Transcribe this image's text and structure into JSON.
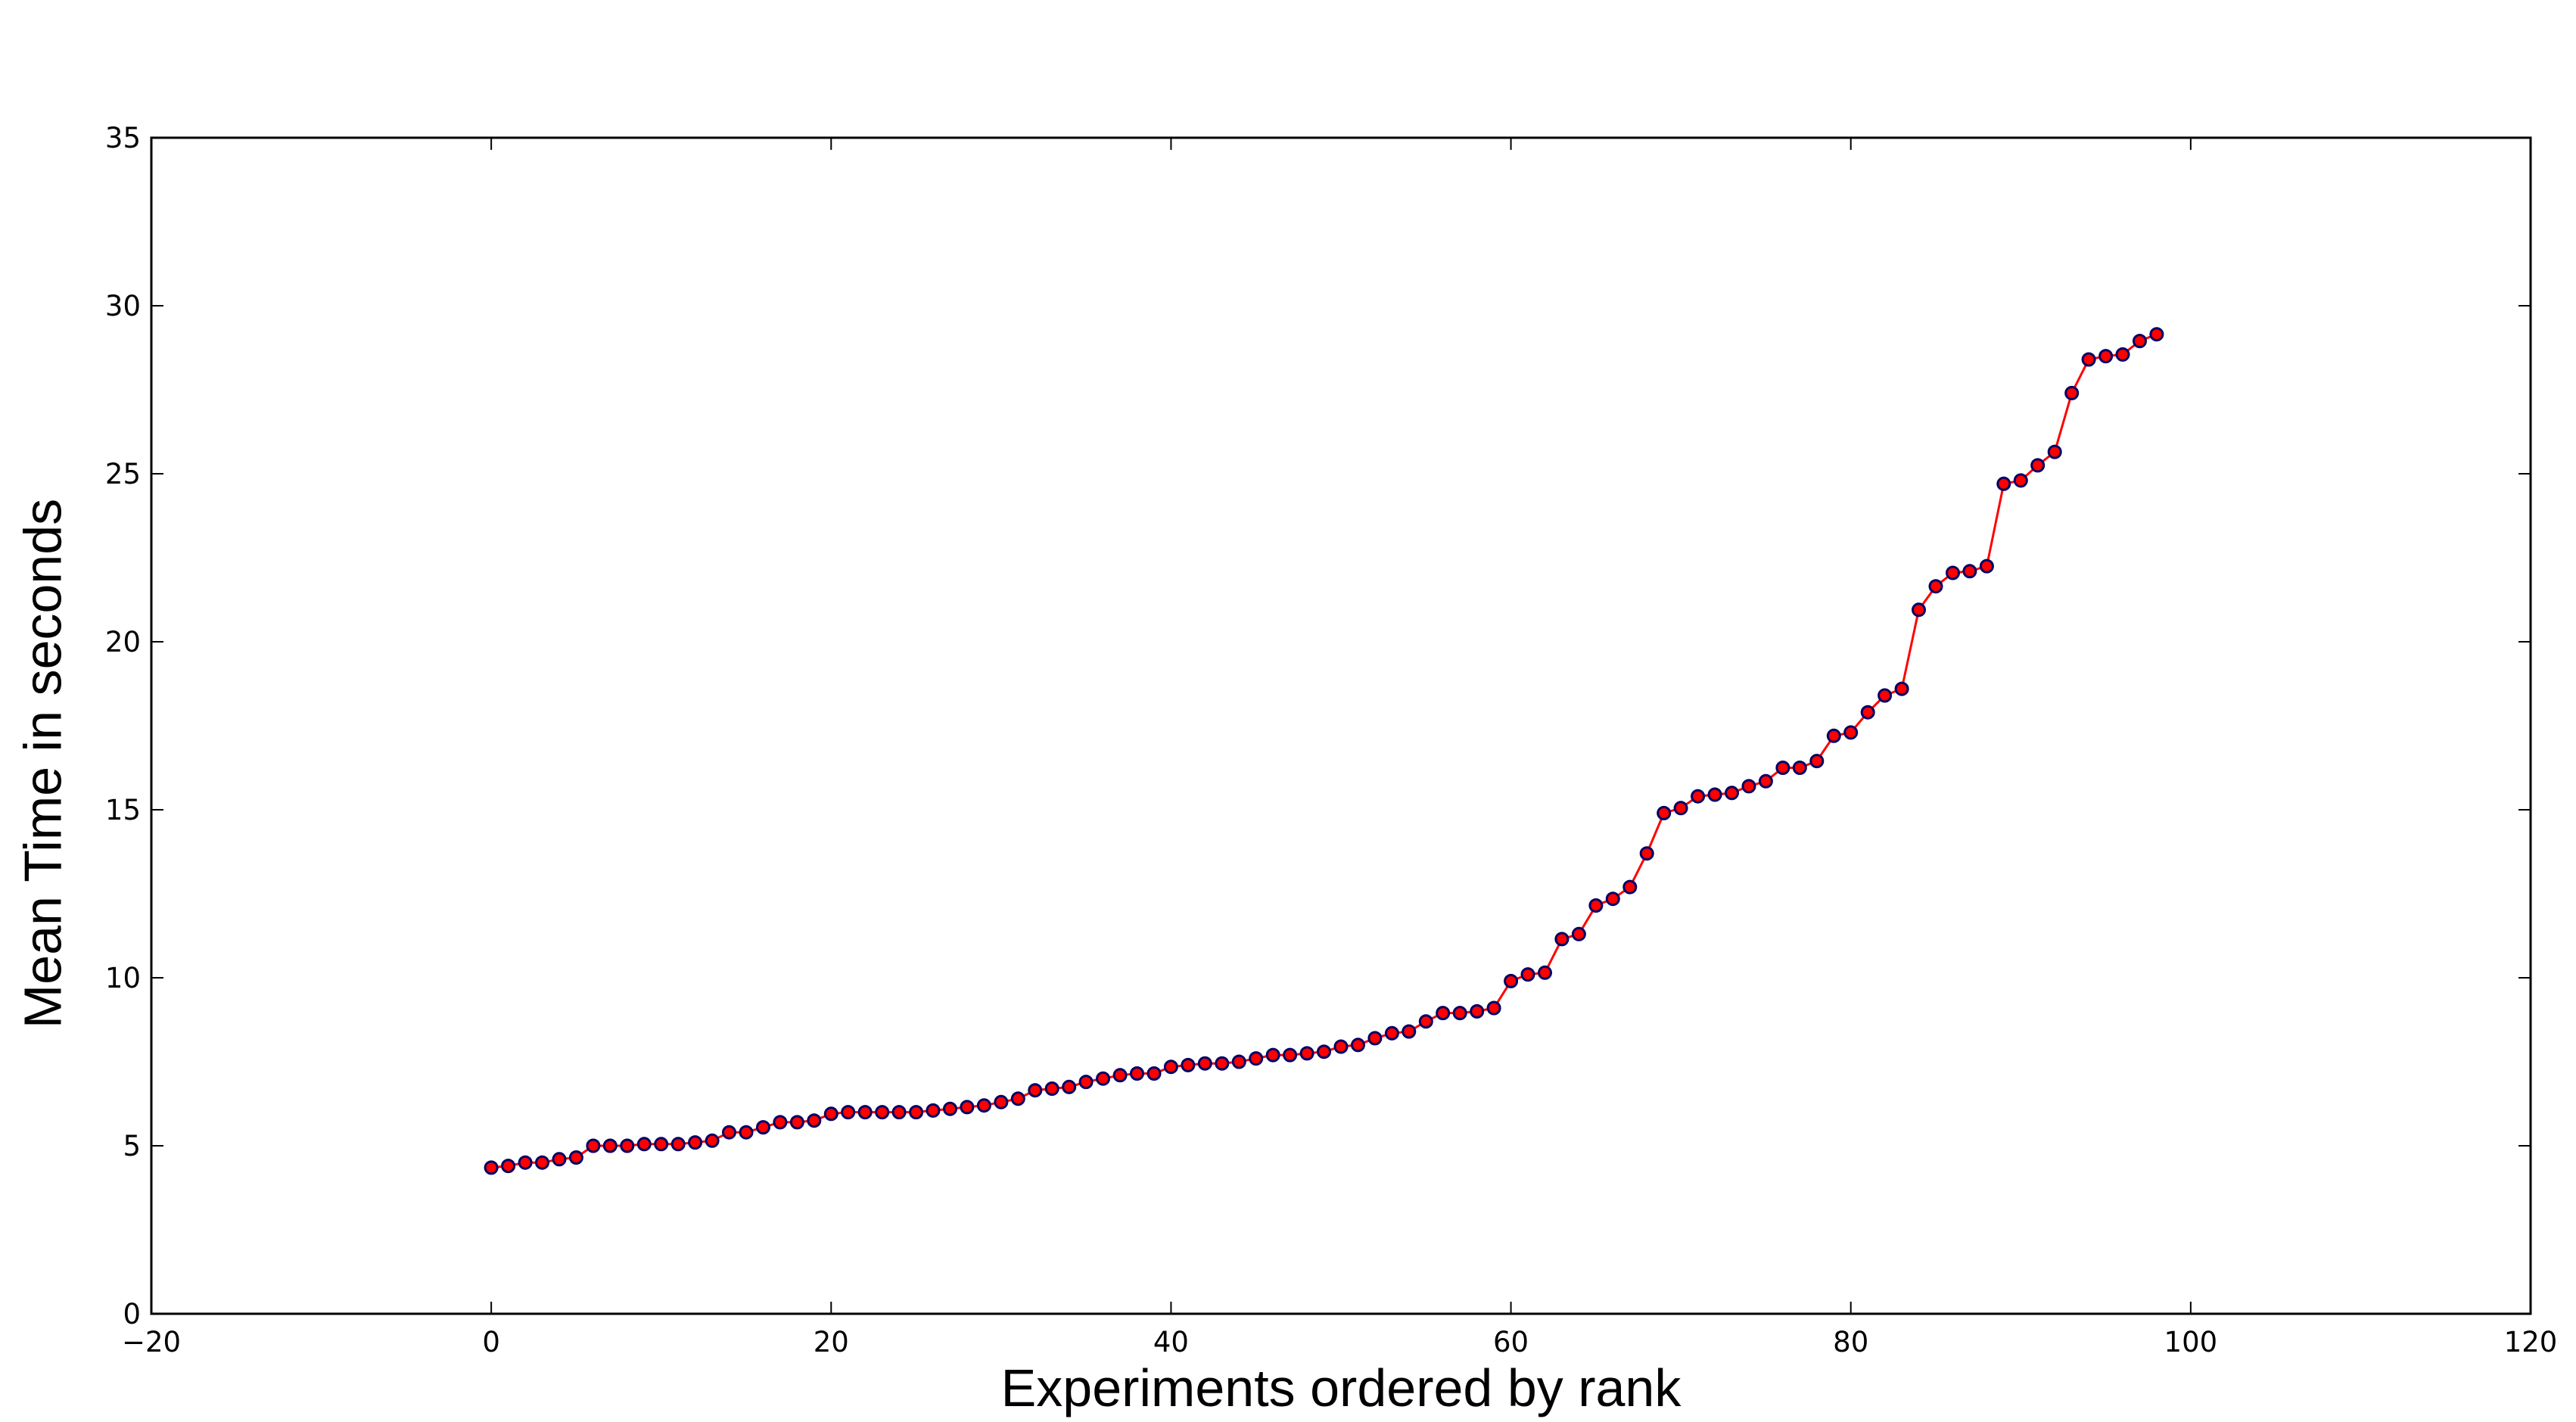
{
  "chart_data": {
    "type": "line",
    "title": "",
    "xlabel": "Experiments ordered by rank",
    "ylabel": "Mean Time in seconds",
    "xlim": [
      -20,
      120
    ],
    "ylim": [
      0,
      35
    ],
    "x_ticks": [
      -20,
      0,
      20,
      40,
      60,
      80,
      100,
      120
    ],
    "y_ticks": [
      0,
      5,
      10,
      15,
      20,
      25,
      30,
      35
    ],
    "x_tick_labels": [
      "−20",
      "0",
      "20",
      "40",
      "60",
      "80",
      "100",
      "120"
    ],
    "y_tick_labels": [
      "0",
      "5",
      "10",
      "15",
      "20",
      "25",
      "30",
      "35"
    ],
    "grid": false,
    "legend": "none",
    "line_color": "#ff0000",
    "marker_face_color": "#ff0000",
    "marker_edge_color": "#000066",
    "series": [
      {
        "x": [
          0,
          1,
          2,
          3,
          4,
          5,
          6,
          7,
          8,
          9,
          10,
          11,
          12,
          13,
          14,
          15,
          16,
          17,
          18,
          19,
          20,
          21,
          22,
          23,
          24,
          25,
          26,
          27,
          28,
          29,
          30,
          31,
          32,
          33,
          34,
          35,
          36,
          37,
          38,
          39,
          40,
          41,
          42,
          43,
          44,
          45,
          46,
          47,
          48,
          49,
          50,
          51,
          52,
          53,
          54,
          55,
          56,
          57,
          58,
          59,
          60,
          61,
          62,
          63,
          64,
          65,
          66,
          67,
          68,
          69,
          70,
          71,
          72,
          73,
          74,
          75,
          76,
          77,
          78,
          79,
          80,
          81,
          82,
          83,
          84,
          85,
          86,
          87,
          88,
          89,
          90,
          91,
          92,
          93,
          94,
          95,
          96,
          97,
          98
        ],
        "values": [
          4.35,
          4.4,
          4.5,
          4.5,
          4.6,
          4.65,
          5.0,
          5.0,
          5.0,
          5.05,
          5.05,
          5.05,
          5.1,
          5.15,
          5.4,
          5.4,
          5.55,
          5.7,
          5.7,
          5.75,
          5.95,
          6.0,
          6.0,
          6.0,
          6.0,
          6.0,
          6.05,
          6.1,
          6.15,
          6.2,
          6.3,
          6.4,
          6.65,
          6.7,
          6.75,
          6.9,
          7.0,
          7.1,
          7.15,
          7.15,
          7.35,
          7.4,
          7.45,
          7.45,
          7.5,
          7.6,
          7.7,
          7.7,
          7.75,
          7.8,
          7.95,
          8.0,
          8.2,
          8.35,
          8.4,
          8.7,
          8.95,
          8.95,
          9.0,
          9.1,
          9.9,
          10.1,
          10.15,
          11.15,
          11.3,
          12.15,
          12.35,
          12.7,
          13.7,
          14.9,
          15.05,
          15.4,
          15.45,
          15.5,
          15.7,
          15.85,
          16.25,
          16.25,
          16.45,
          17.2,
          17.3,
          17.9,
          18.4,
          18.6,
          20.95,
          21.65,
          22.05,
          22.1,
          22.25,
          24.7,
          24.8,
          25.25,
          25.65,
          27.4,
          28.4,
          28.5,
          28.55,
          28.95,
          29.15
        ]
      }
    ]
  }
}
